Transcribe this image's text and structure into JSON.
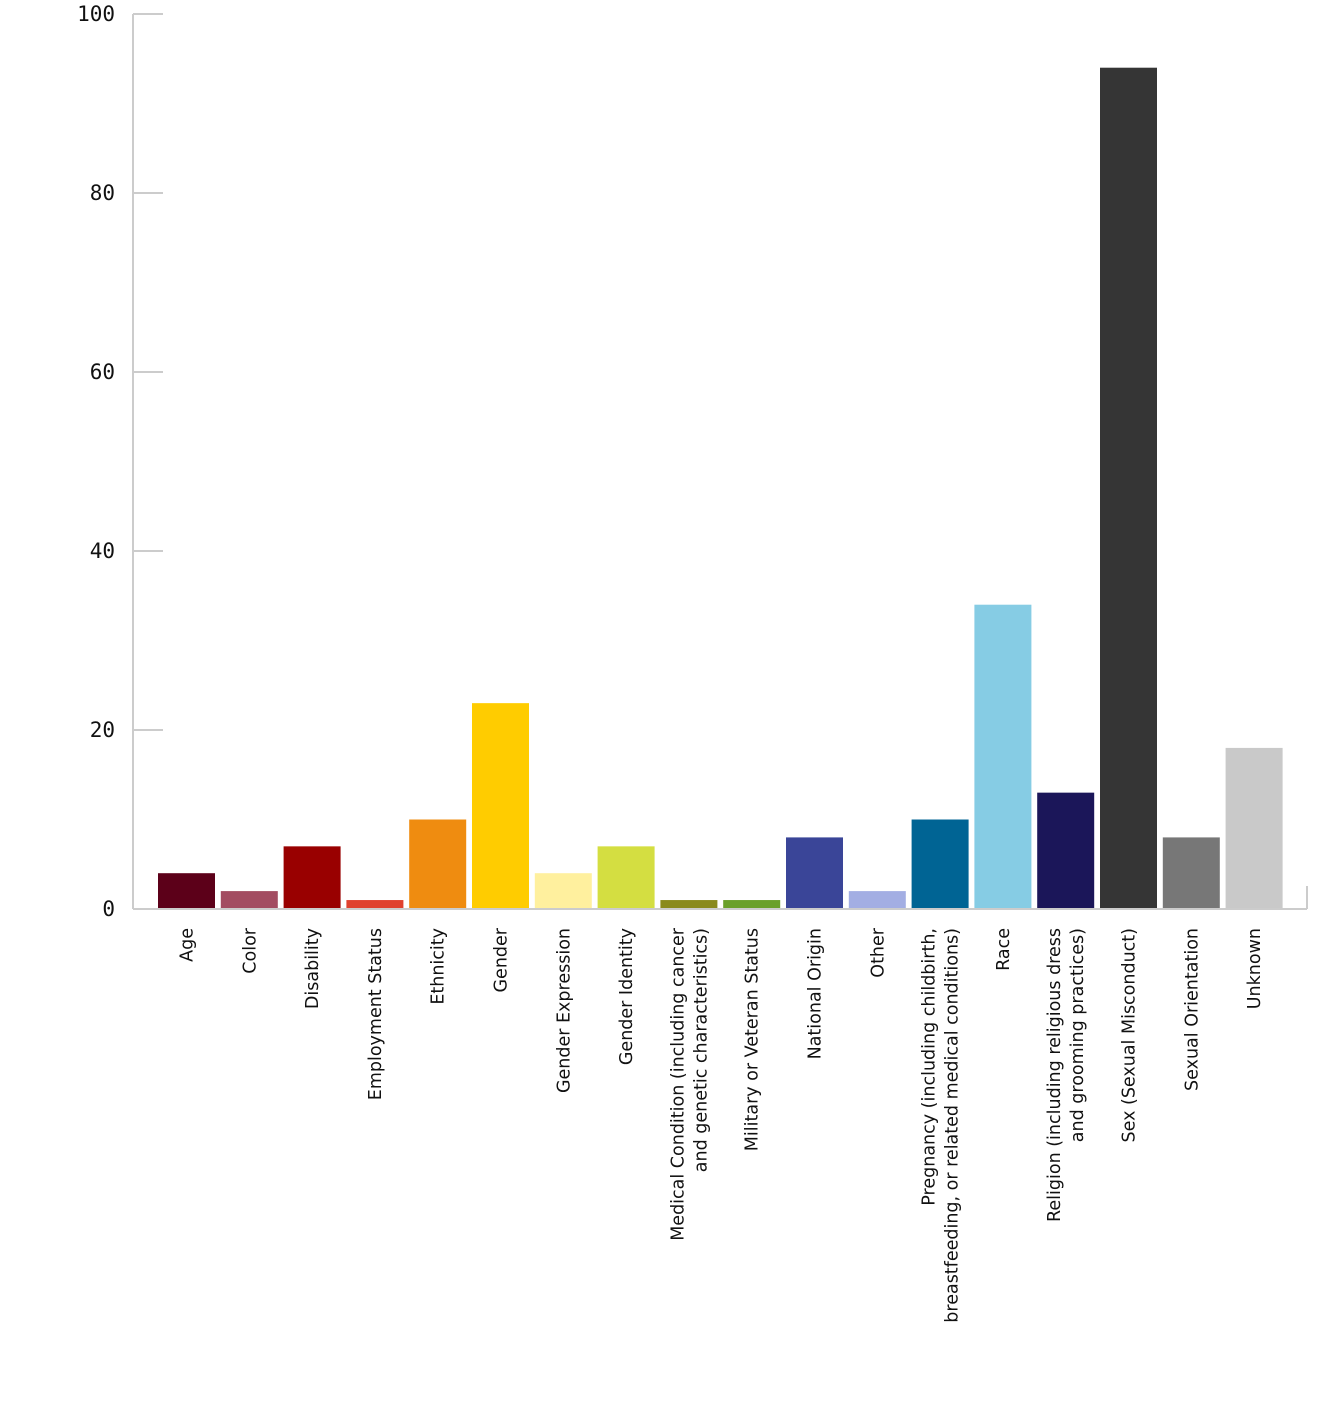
{
  "chart_data": {
    "type": "bar",
    "title": "",
    "xlabel": "",
    "ylabel": "",
    "ylim": [
      0,
      100
    ],
    "yticks": [
      0,
      20,
      40,
      60,
      80,
      100
    ],
    "grid": false,
    "legend": "none",
    "categories": [
      [
        "Age"
      ],
      [
        "Color"
      ],
      [
        "Disability"
      ],
      [
        "Employment Status"
      ],
      [
        "Ethnicity"
      ],
      [
        "Gender"
      ],
      [
        "Gender Expression"
      ],
      [
        "Gender Identity"
      ],
      [
        "Medical Condition (including cancer",
        "and genetic characteristics)"
      ],
      [
        "Military or Veteran Status"
      ],
      [
        "National Origin"
      ],
      [
        "Other"
      ],
      [
        "Pregnancy (including childbirth,",
        "breastfeeding, or related medical conditions)"
      ],
      [
        "Race"
      ],
      [
        "Religion (including religious dress",
        "and grooming practices)"
      ],
      [
        "Sex (Sexual Misconduct)"
      ],
      [
        "Sexual Orientation"
      ],
      [
        "Unknown"
      ]
    ],
    "values": [
      4,
      2,
      7,
      1,
      10,
      23,
      4,
      7,
      1,
      1,
      8,
      2,
      10,
      34,
      13,
      94,
      8,
      18
    ],
    "colors": [
      "#5c0019",
      "#a34c61",
      "#990000",
      "#e0412e",
      "#ef8c10",
      "#ffcc00",
      "#fff09e",
      "#d4de41",
      "#8a8a1c",
      "#6aa02a",
      "#3a4598",
      "#a3aee3",
      "#006494",
      "#86cce4",
      "#1b1659",
      "#353535",
      "#777777",
      "#c9c9c9"
    ],
    "axis_color": "#cccccc"
  }
}
